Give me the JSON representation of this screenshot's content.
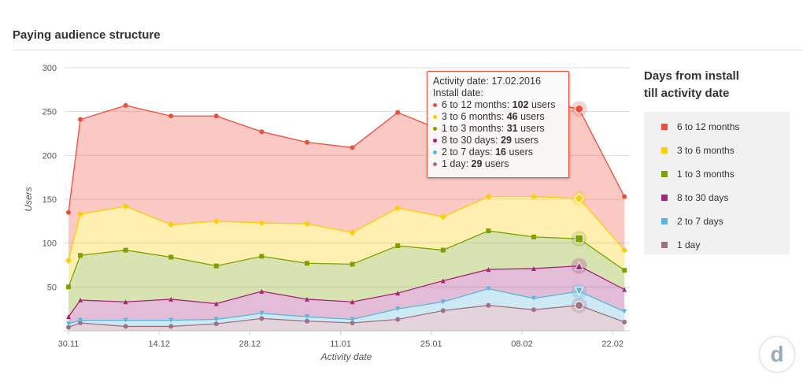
{
  "title": "Paying audience structure",
  "legend_title_1": "Days from install",
  "legend_title_2": "till activity date",
  "logo_text": "d",
  "chart_data": {
    "type": "area",
    "stacked": true,
    "xlabel": "Activity date",
    "ylabel": "Users",
    "ylim": [
      0,
      300
    ],
    "yticks": [
      50,
      100,
      150,
      200,
      250,
      300
    ],
    "x": [
      "30.11",
      "02.12",
      "09.12",
      "16.12",
      "23.12",
      "30.12",
      "06.01",
      "13.01",
      "20.01",
      "27.01",
      "03.02",
      "10.02",
      "17.02",
      "24.02"
    ],
    "xtick_labels": [
      "30.11",
      "14.12",
      "28.12",
      "11.01",
      "25.01",
      "08.02",
      "22.02"
    ],
    "xtick_index": [
      0,
      2.5,
      5,
      7.5,
      10,
      12.5,
      15
    ],
    "series_cumulative": [
      {
        "name": "1 day",
        "color": "#9e7185",
        "marker": "circle",
        "values": [
          4,
          9,
          5,
          5,
          8,
          14,
          11,
          9,
          13,
          23,
          29,
          24,
          29,
          10
        ]
      },
      {
        "name": "2 to 7 days",
        "color": "#5bb5db",
        "marker": "triangle-down",
        "values": [
          8,
          12,
          12,
          12,
          13,
          20,
          16,
          13,
          25,
          33,
          48,
          37,
          45,
          22
        ]
      },
      {
        "name": "8 to 30 days",
        "color": "#a3267a",
        "marker": "triangle",
        "values": [
          16,
          35,
          33,
          36,
          31,
          45,
          36,
          33,
          43,
          57,
          70,
          71,
          74,
          47
        ]
      },
      {
        "name": "1 to 3 months",
        "color": "#7ea100",
        "marker": "square",
        "values": [
          50,
          86,
          92,
          84,
          74,
          85,
          77,
          76,
          97,
          92,
          114,
          107,
          105,
          69
        ]
      },
      {
        "name": "3 to 6 months",
        "color": "#ffcd00",
        "marker": "diamond",
        "values": [
          80,
          133,
          142,
          121,
          125,
          123,
          122,
          112,
          140,
          130,
          153,
          153,
          151,
          92
        ]
      },
      {
        "name": "6 to 12 months",
        "color": "#f24b3a",
        "marker": "circle",
        "values": [
          135,
          241,
          257,
          245,
          245,
          227,
          215,
          209,
          249,
          228,
          245,
          263,
          253,
          153
        ]
      }
    ],
    "highlight_index": 12,
    "tooltip": {
      "header": "Activity date: 17.02.2016",
      "sub": "Install date:",
      "rows": [
        {
          "label": "6 to 12 months: ",
          "value": "102",
          "unit": " users",
          "color": "#f24b3a"
        },
        {
          "label": "3 to 6 months: ",
          "value": "46",
          "unit": " users",
          "color": "#ffcd00"
        },
        {
          "label": "1 to 3 months: ",
          "value": "31",
          "unit": " users",
          "color": "#7ea100"
        },
        {
          "label": "8 to 30 days: ",
          "value": "29",
          "unit": " users",
          "color": "#a3267a"
        },
        {
          "label": "2 to 7 days: ",
          "value": "16",
          "unit": " users",
          "color": "#5bb5db"
        },
        {
          "label": "1 day: ",
          "value": "29",
          "unit": " users",
          "color": "#9e7185"
        }
      ]
    },
    "legend": [
      {
        "label": "6 to 12 months",
        "color": "#f24b3a"
      },
      {
        "label": "3 to 6 months",
        "color": "#ffcd00"
      },
      {
        "label": "1 to 3 months",
        "color": "#7ea100"
      },
      {
        "label": "8 to 30 days",
        "color": "#a3267a"
      },
      {
        "label": "2 to 7 days",
        "color": "#5bb5db"
      },
      {
        "label": "1 day",
        "color": "#9e7185"
      }
    ]
  }
}
